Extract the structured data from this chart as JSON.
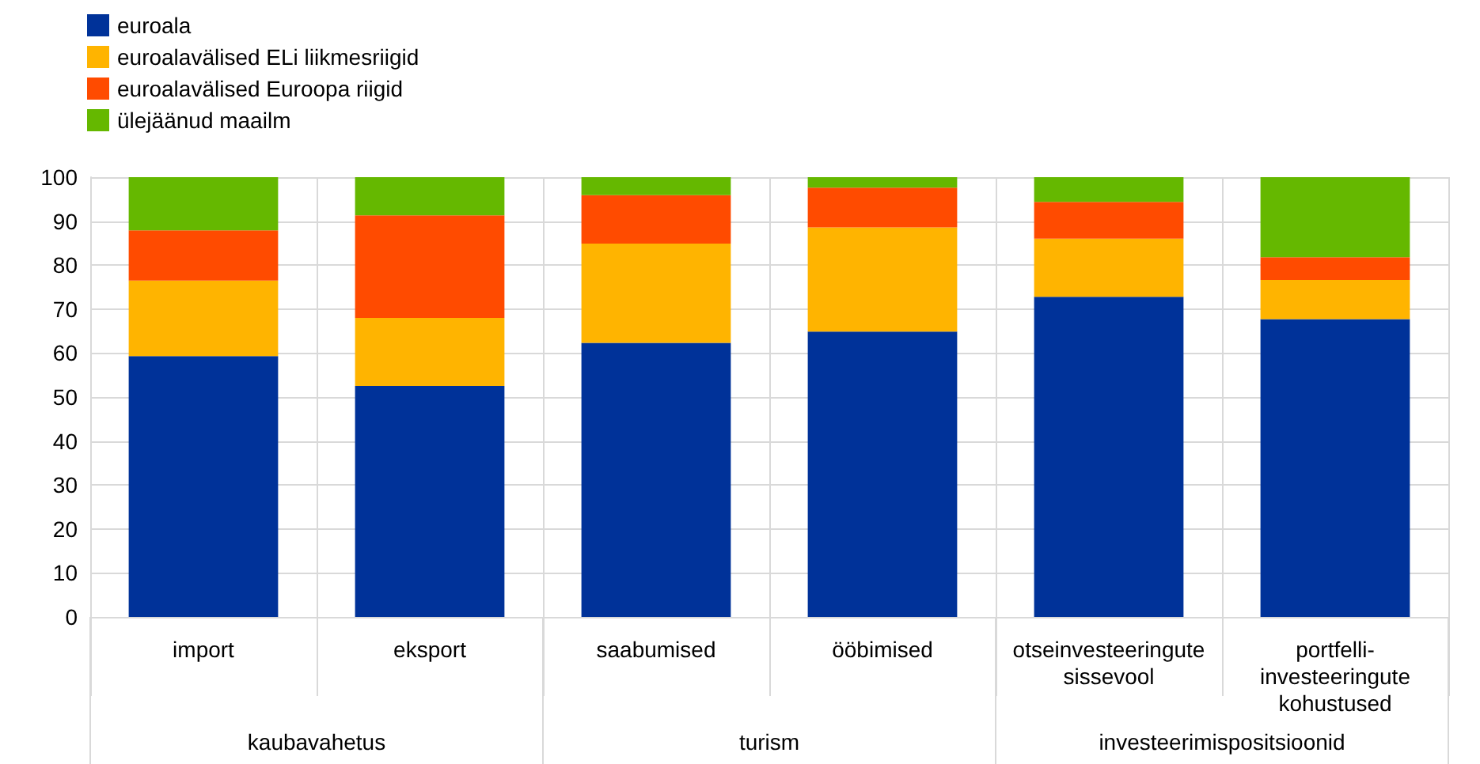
{
  "chart_data": {
    "type": "bar",
    "stacked": true,
    "categories": [
      "import",
      "eksport",
      "saabumised",
      "ööbimised",
      "otseinvesteeringute\nsissevool",
      "portfelli-\ninvesteeringute\nkohustused"
    ],
    "series": [
      {
        "name": "euroala",
        "color": "#003299",
        "values": [
          59.3,
          52.5,
          62.3,
          64.9,
          72.8,
          67.7
        ]
      },
      {
        "name": "euroalavälised ELi liikmesriigid",
        "color": "#ffb400",
        "values": [
          17.2,
          15.5,
          22.6,
          23.7,
          13.2,
          8.9
        ]
      },
      {
        "name": "euroalavälised Euroopa riigid",
        "color": "#ff4b00",
        "values": [
          11.4,
          23.3,
          11.0,
          9.0,
          8.4,
          5.2
        ]
      },
      {
        "name": "ülejäänud maailm",
        "color": "#65b800",
        "values": [
          12.1,
          8.7,
          4.1,
          2.4,
          5.6,
          18.2
        ]
      }
    ],
    "annotations": [
      "kaubavahetus",
      "turism",
      "investeerimispositsioonid"
    ],
    "ylim": [
      0,
      100
    ],
    "yticks": [
      0,
      10,
      20,
      30,
      40,
      50,
      60,
      70,
      80,
      90,
      100
    ],
    "grid": true,
    "legend": "top left"
  }
}
